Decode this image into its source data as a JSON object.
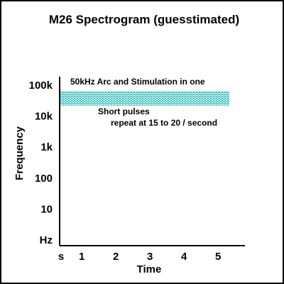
{
  "chart_data": {
    "type": "heatmap",
    "title": "M26 Spectrogram (guesstimated)",
    "xlabel": "Time",
    "ylabel": "Frequency",
    "x_ticks": [
      {
        "value": 0,
        "label": "s"
      },
      {
        "value": 1,
        "label": "1"
      },
      {
        "value": 2,
        "label": "2"
      },
      {
        "value": 3,
        "label": "3"
      },
      {
        "value": 4,
        "label": "4"
      },
      {
        "value": 5,
        "label": "5"
      }
    ],
    "y_scale": "log",
    "y_ticks": [
      {
        "value": 1,
        "label": "Hz"
      },
      {
        "value": 10,
        "label": "10"
      },
      {
        "value": 100,
        "label": "100"
      },
      {
        "value": 1000,
        "label": "1k"
      },
      {
        "value": 10000,
        "label": "10k"
      },
      {
        "value": 100000,
        "label": "100k"
      }
    ],
    "band": {
      "x": [
        0,
        5
      ],
      "y": [
        22000,
        65000
      ],
      "color": "#3fbcbc"
    },
    "annotations": {
      "band_label": "50kHz Arc and Stimulation in one",
      "pulse_line1": "Short pulses",
      "pulse_line2": "repeat at 15 to 20 / second"
    }
  }
}
